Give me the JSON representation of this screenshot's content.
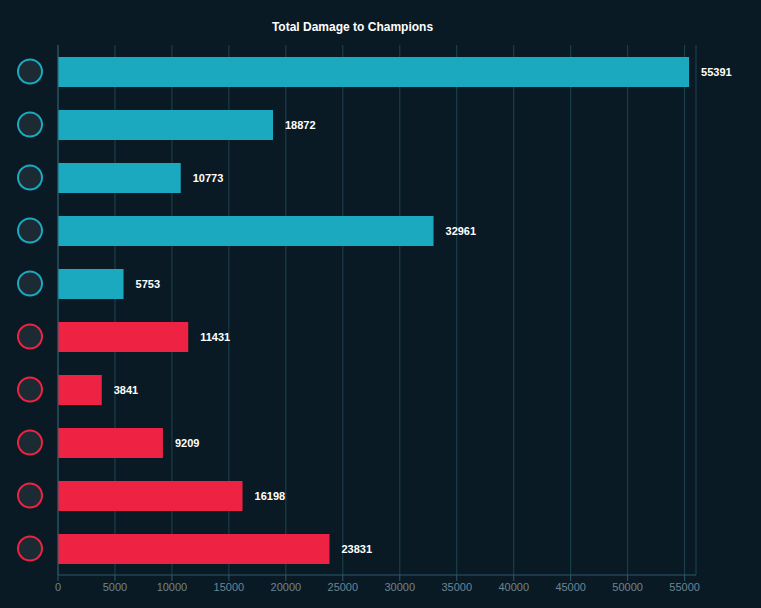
{
  "chart_data": {
    "type": "bar",
    "title": "Total Damage to Champions",
    "orientation": "horizontal",
    "categories": [
      null,
      null,
      null,
      null,
      null,
      null,
      null,
      null,
      null,
      null
    ],
    "values": [
      55391,
      18872,
      10773,
      32961,
      5753,
      11431,
      3841,
      9209,
      16198,
      23831
    ],
    "colors": [
      "#1ba9c0",
      "#1ba9c0",
      "#1ba9c0",
      "#1ba9c0",
      "#1ba9c0",
      "#ee2344",
      "#ee2344",
      "#ee2344",
      "#ee2344",
      "#ee2344"
    ],
    "xlim": [
      0,
      56000
    ],
    "xticks": [
      0,
      5000,
      10000,
      15000,
      20000,
      25000,
      30000,
      35000,
      40000,
      45000,
      50000,
      55000
    ],
    "grid": true,
    "data_labels": true
  }
}
